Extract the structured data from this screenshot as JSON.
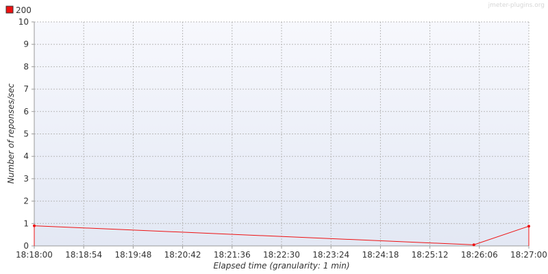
{
  "watermark": "jmeter-plugins.org",
  "legend": {
    "label": "200",
    "color": "#ee1111"
  },
  "chart_data": {
    "type": "line",
    "xlabel": "Elapsed time (granularity: 1 min)",
    "ylabel": "Number of reponses/sec",
    "ylim": [
      0,
      10
    ],
    "yticks": [
      "0",
      "1",
      "2",
      "3",
      "4",
      "5",
      "6",
      "7",
      "8",
      "9",
      "10"
    ],
    "xticks": [
      "18:18:00",
      "18:18:54",
      "18:19:48",
      "18:20:42",
      "18:21:36",
      "18:22:30",
      "18:23:24",
      "18:24:18",
      "18:25:12",
      "18:26:06",
      "18:27:00"
    ],
    "xlim": [
      "18:18:00",
      "18:27:00"
    ],
    "grid": true,
    "legend_position": "top-left",
    "series": [
      {
        "name": "200",
        "color": "#ee1111",
        "x": [
          "18:18:00",
          "18:26:00",
          "18:27:00"
        ],
        "y": [
          0.9,
          0.05,
          0.88
        ]
      }
    ]
  }
}
